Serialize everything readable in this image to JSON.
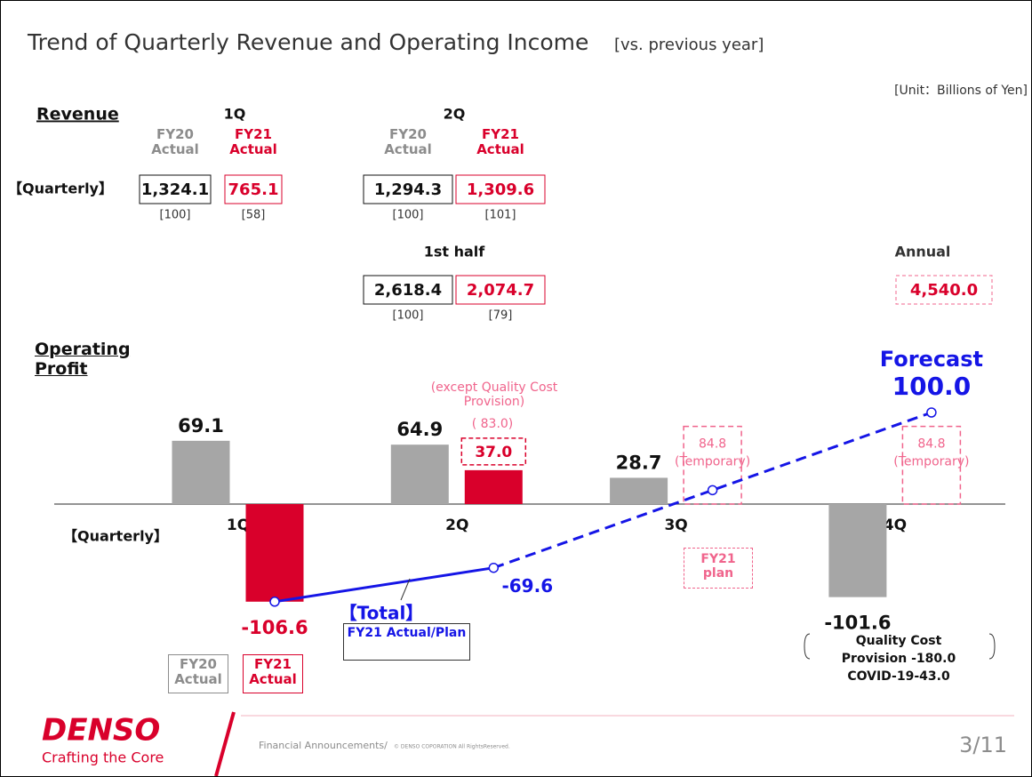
{
  "title": "Trend of Quarterly Revenue and Operating Income",
  "title_suffix": "[vs. previous year]",
  "unit": "[Unit：Billions of Yen]",
  "revenue": {
    "label": "Revenue",
    "row_label": "【Quarterly】",
    "groups": [
      {
        "name": "1Q",
        "items": [
          {
            "header": "FY20 Actual",
            "value": "1,324.1",
            "index": "[100]"
          },
          {
            "header": "FY21 Actual",
            "value": "765.1",
            "index": "[58]"
          }
        ]
      },
      {
        "name": "2Q",
        "items": [
          {
            "header": "FY20 Actual",
            "value": "1,294.3",
            "index": "[100]"
          },
          {
            "header": "FY21 Actual",
            "value": "1,309.6",
            "index": "[101]"
          }
        ]
      },
      {
        "name": "1st half",
        "items": [
          {
            "header": null,
            "value": "2,618.4",
            "index": "[100]"
          },
          {
            "header": null,
            "value": "2,074.7",
            "index": "[79]"
          }
        ]
      }
    ],
    "annual": {
      "name": "Annual",
      "value": "4,540.0"
    }
  },
  "chart_data": {
    "type": "bar",
    "title": "Operating Profit",
    "axis_label": "【Quarterly】",
    "categories": [
      "1Q",
      "2Q",
      "3Q",
      "4Q"
    ],
    "series": [
      {
        "name": "FY20 Actual",
        "color": "#a6a6a6",
        "values": [
          69.1,
          64.9,
          28.7,
          -101.6
        ],
        "value_labels": [
          "69.1",
          "64.9",
          "28.7",
          "-101.6"
        ]
      },
      {
        "name": "FY21 Actual",
        "color": "#d9002b",
        "values": [
          -106.6,
          37.0,
          null,
          null
        ],
        "value_labels": [
          "-106.6",
          "37.0",
          null,
          null
        ]
      },
      {
        "name": "FY21 plan",
        "color": "#f0648c",
        "style": "dashed",
        "values": [
          null,
          null,
          84.8,
          84.8
        ],
        "value_labels": [
          null,
          null,
          "84.8",
          "84.8"
        ],
        "notes": [
          null,
          null,
          "(Temporary)",
          "(Temporary)"
        ]
      },
      {
        "name": "【Total】",
        "subtitle": "FY21 Actual/Plan",
        "type": "line",
        "color": "#1515e6",
        "dashed_from": 1,
        "values": [
          -106.6,
          -69.6,
          15.2,
          100.0
        ],
        "value_labels": [
          null,
          "-69.6",
          null,
          "100.0"
        ]
      }
    ],
    "forecast_label": "Forecast",
    "annotation_2q": {
      "text": "(except Quality Cost Provision)",
      "value": "( 83.0)"
    },
    "note_4q": [
      "Quality Cost",
      "Provision -180.0",
      "COVID-19-43.0"
    ]
  },
  "footer": {
    "logo": "DENSO",
    "tagline": "Crafting the Core",
    "text": "Financial Announcements/",
    "copyright": "© DENSO COPORATION All RightsReserved.",
    "page": "3/11"
  }
}
